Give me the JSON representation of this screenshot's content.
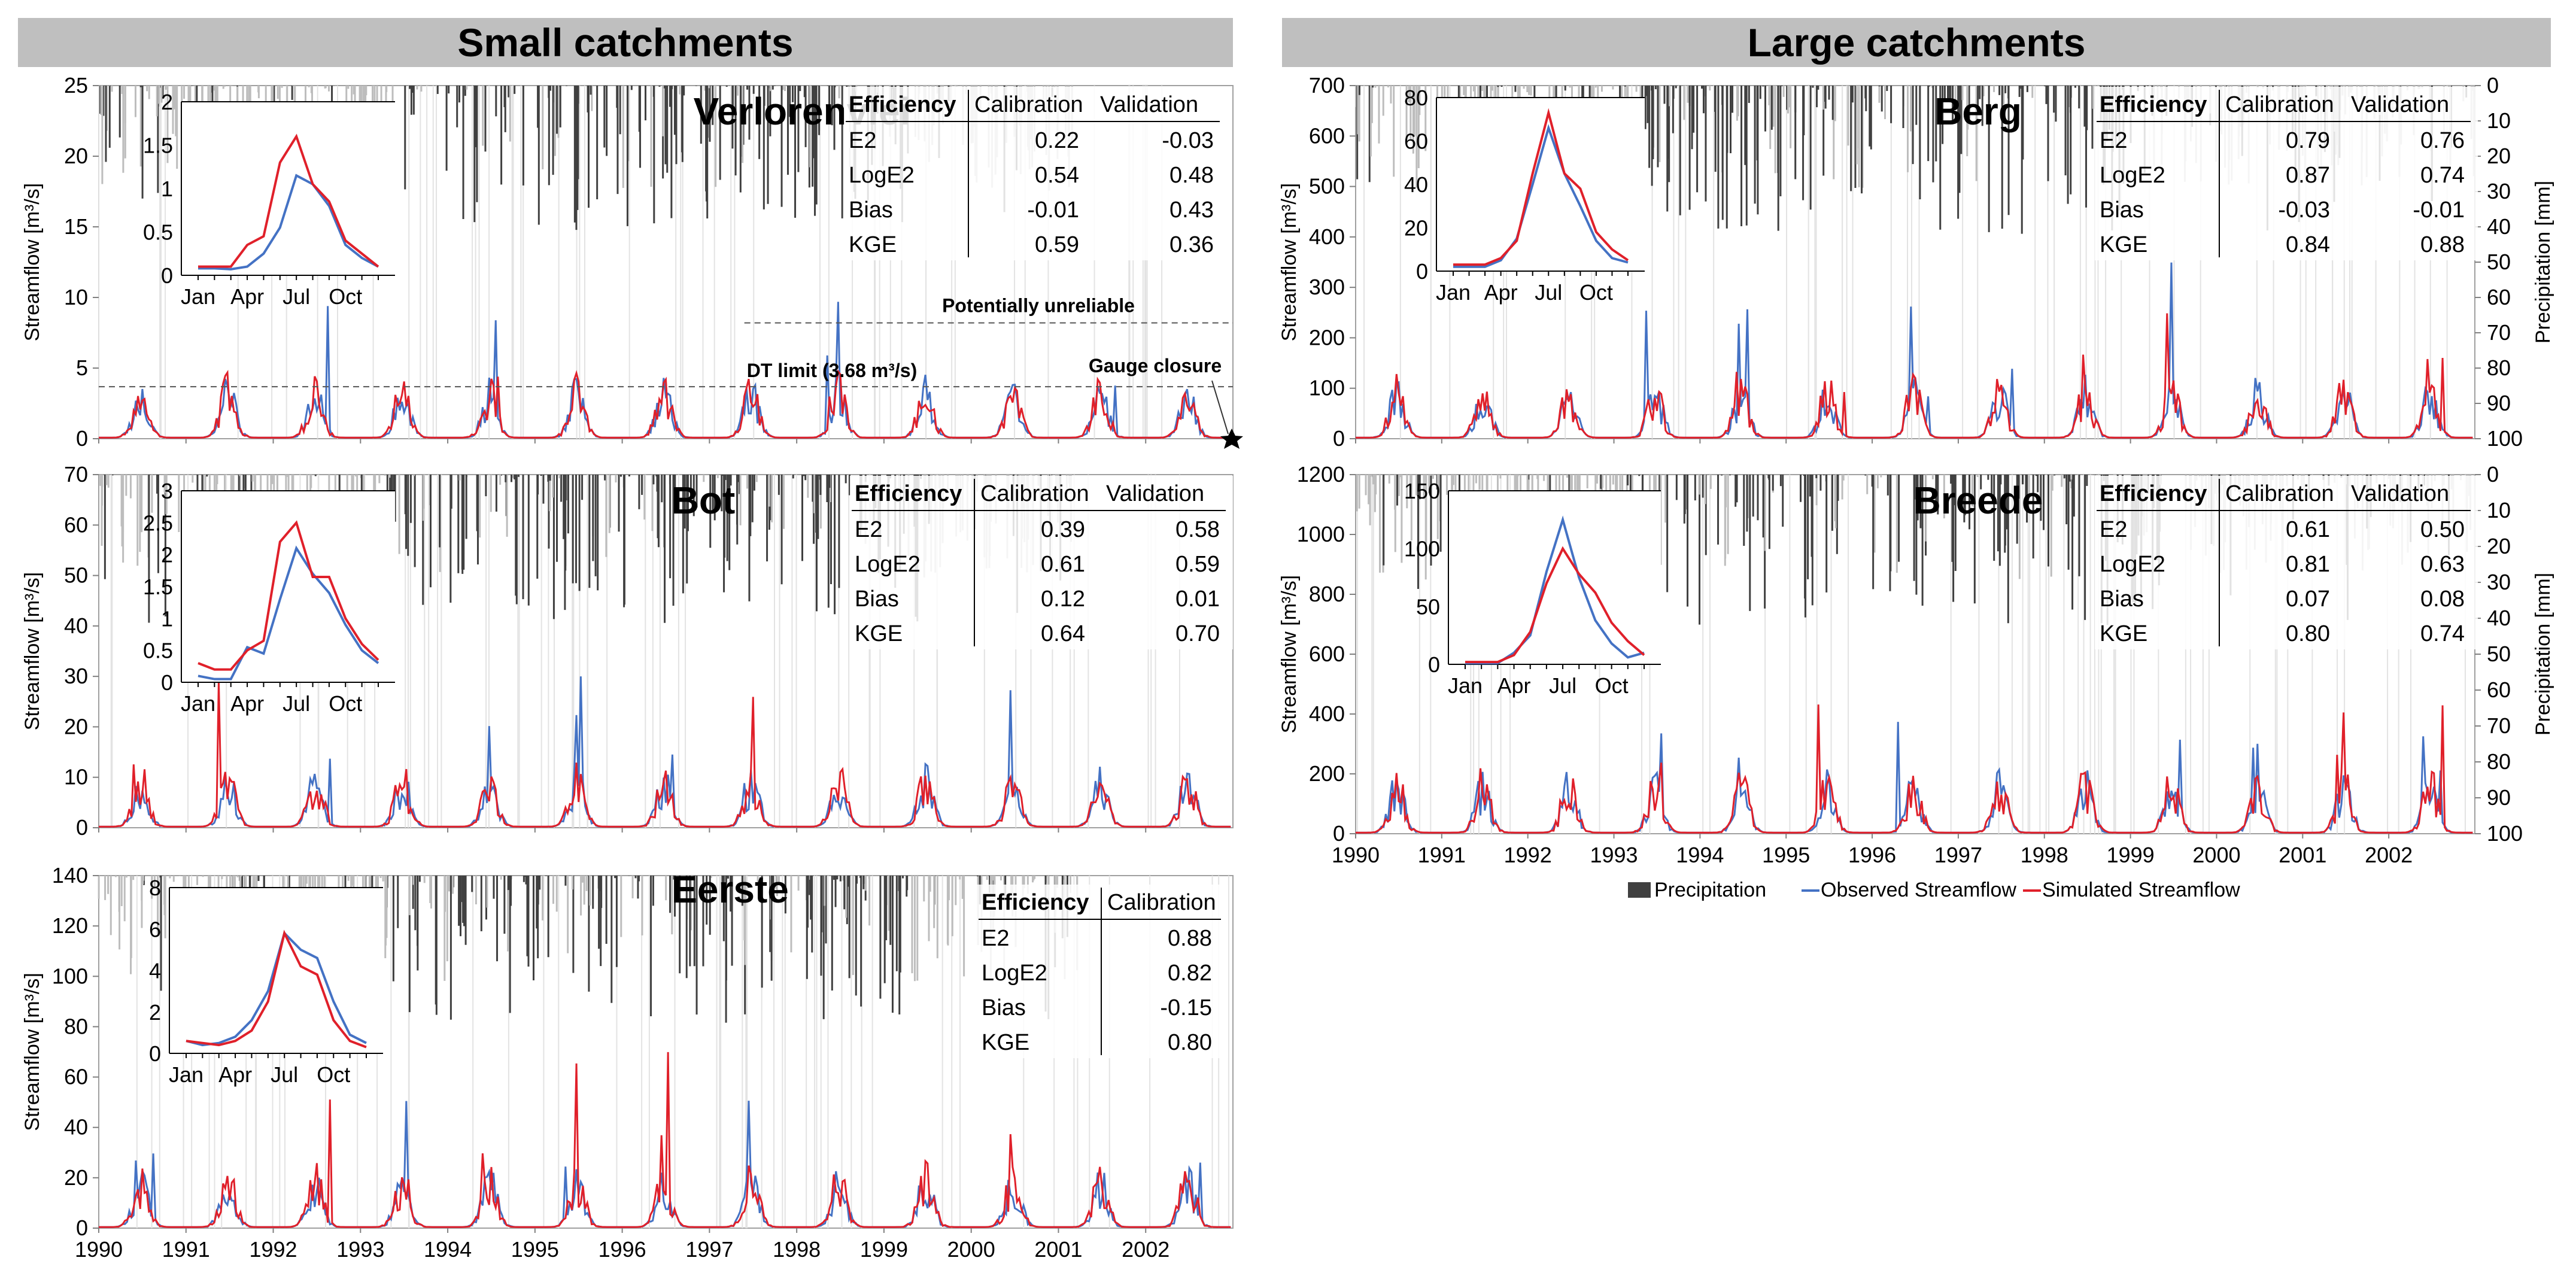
{
  "headers": {
    "small": "Small catchments",
    "large": "Large catchments"
  },
  "legend": {
    "precipitation": "Precipitation",
    "observed": "Observed Streamflow",
    "simulated": "Simulated Streamflow"
  },
  "colors": {
    "observed": "#4472c4",
    "simulated": "#e0202a",
    "precip_dark": "#404040",
    "precip_light": "#bdbdbd"
  },
  "chart_data": [
    {
      "type": "line",
      "title": "Verlorenvlei",
      "ylabel": "Streamflow [m³/s]",
      "ylim": [
        0,
        25
      ],
      "yticks": [
        0,
        5,
        10,
        15,
        20,
        25
      ],
      "xlabels": [
        "1990",
        "1991",
        "1992",
        "1993",
        "1994",
        "1995",
        "1996",
        "1997",
        "1998",
        "1999",
        "2000",
        "2001",
        "2002"
      ],
      "xlim": [
        1990,
        2003
      ],
      "y2label": "",
      "series": [
        {
          "name": "Observed Streamflow",
          "color": "#4472c4"
        },
        {
          "name": "Simulated Streamflow",
          "color": "#e0202a"
        }
      ],
      "annotations": {
        "dt_limit": "DT limit (3.68 m³/s)",
        "dt_value": 3.68,
        "unreliable": "Potentially unreliable",
        "unreliable_value": 8.2,
        "unreliable_from": 1997.4,
        "gauge": "Gauge closure"
      },
      "efficiency": {
        "headers": [
          "Efficiency",
          "Calibration",
          "Validation"
        ],
        "rows": [
          [
            "E2",
            "0.22",
            "-0.03"
          ],
          [
            "LogE2",
            "0.54",
            "0.48"
          ],
          [
            "Bias",
            "-0.01",
            "0.43"
          ],
          [
            "KGE",
            "0.59",
            "0.36"
          ]
        ]
      },
      "inset": {
        "ylim": [
          0,
          2
        ],
        "yticks": [
          "0",
          "0.5",
          "1",
          "1.5",
          "2"
        ],
        "xticklabels": [
          "Jan",
          "Apr",
          "Jul",
          "Oct"
        ],
        "observed": [
          0.08,
          0.08,
          0.07,
          0.1,
          0.25,
          0.55,
          1.15,
          1.05,
          0.8,
          0.35,
          0.2,
          0.1
        ],
        "simulated": [
          0.1,
          0.1,
          0.1,
          0.35,
          0.45,
          1.3,
          1.6,
          1.05,
          0.85,
          0.4,
          0.25,
          0.1
        ]
      }
    },
    {
      "type": "line",
      "title": "Bot",
      "ylabel": "Streamflow [m³/s]",
      "ylim": [
        0,
        70
      ],
      "yticks": [
        0,
        10,
        20,
        30,
        40,
        50,
        60,
        70
      ],
      "xlabels": [
        "1990",
        "1991",
        "1992",
        "1993",
        "1994",
        "1995",
        "1996",
        "1997",
        "1998",
        "1999",
        "2000",
        "2001",
        "2002"
      ],
      "xlim": [
        1990,
        2003
      ],
      "series": [
        {
          "name": "Observed Streamflow",
          "color": "#4472c4"
        },
        {
          "name": "Simulated Streamflow",
          "color": "#e0202a"
        }
      ],
      "efficiency": {
        "headers": [
          "Efficiency",
          "Calibration",
          "Validation"
        ],
        "rows": [
          [
            "E2",
            "0.39",
            "0.58"
          ],
          [
            "LogE2",
            "0.61",
            "0.59"
          ],
          [
            "Bias",
            "0.12",
            "0.01"
          ],
          [
            "KGE",
            "0.64",
            "0.70"
          ]
        ]
      },
      "inset": {
        "ylim": [
          0,
          3
        ],
        "yticks": [
          "0",
          "0.5",
          "1",
          "1.5",
          "2",
          "2.5",
          "3"
        ],
        "xticklabels": [
          "Jan",
          "Apr",
          "Jul",
          "Oct"
        ],
        "observed": [
          0.1,
          0.05,
          0.05,
          0.55,
          0.45,
          1.3,
          2.1,
          1.7,
          1.4,
          0.9,
          0.5,
          0.3
        ],
        "simulated": [
          0.3,
          0.2,
          0.2,
          0.5,
          0.65,
          2.2,
          2.5,
          1.65,
          1.65,
          1.0,
          0.6,
          0.35
        ]
      }
    },
    {
      "type": "line",
      "title": "Eerste",
      "ylabel": "Streamflow [m³/s]",
      "ylim": [
        0,
        140
      ],
      "yticks": [
        0,
        20,
        40,
        60,
        80,
        100,
        120,
        140
      ],
      "xlabels": [
        "1990",
        "1991",
        "1992",
        "1993",
        "1994",
        "1995",
        "1996",
        "1997",
        "1998",
        "1999",
        "2000",
        "2001",
        "2002"
      ],
      "xlim": [
        1990,
        2003
      ],
      "series": [
        {
          "name": "Observed Streamflow",
          "color": "#4472c4"
        },
        {
          "name": "Simulated Streamflow",
          "color": "#e0202a"
        }
      ],
      "efficiency": {
        "headers": [
          "Efficiency",
          "Calibration"
        ],
        "rows": [
          [
            "E2",
            "0.88"
          ],
          [
            "LogE2",
            "0.82"
          ],
          [
            "Bias",
            "-0.15"
          ],
          [
            "KGE",
            "0.80"
          ]
        ]
      },
      "inset": {
        "ylim": [
          0,
          8
        ],
        "yticks": [
          "0",
          "2",
          "4",
          "6",
          "8"
        ],
        "xticklabels": [
          "Jan",
          "Apr",
          "Jul",
          "Oct"
        ],
        "observed": [
          0.6,
          0.4,
          0.5,
          0.8,
          1.6,
          3.0,
          5.8,
          5.0,
          4.6,
          2.5,
          0.9,
          0.5
        ],
        "simulated": [
          0.6,
          0.5,
          0.4,
          0.6,
          1.1,
          2.5,
          5.8,
          4.2,
          3.8,
          1.6,
          0.6,
          0.3
        ]
      }
    },
    {
      "type": "line",
      "title": "Berg",
      "ylabel": "Streamflow [m³/s]",
      "ylim": [
        0,
        700
      ],
      "yticks": [
        0,
        100,
        200,
        300,
        400,
        500,
        600,
        700
      ],
      "y2label": "Precipitation [mm]",
      "y2ticks": [
        0,
        10,
        20,
        30,
        40,
        50,
        60,
        70,
        80,
        90,
        100
      ],
      "xlabels": [
        "1990",
        "1991",
        "1992",
        "1993",
        "1994",
        "1995",
        "1996",
        "1997",
        "1998",
        "1999",
        "2000",
        "2001",
        "2002"
      ],
      "xlim": [
        1990,
        2003
      ],
      "series": [
        {
          "name": "Observed Streamflow",
          "color": "#4472c4"
        },
        {
          "name": "Simulated Streamflow",
          "color": "#e0202a"
        }
      ],
      "efficiency": {
        "headers": [
          "Efficiency",
          "Calibration",
          "Validation"
        ],
        "rows": [
          [
            "E2",
            "0.79",
            "0.76"
          ],
          [
            "LogE2",
            "0.87",
            "0.74"
          ],
          [
            "Bias",
            "-0.03",
            "-0.01"
          ],
          [
            "KGE",
            "0.84",
            "0.88"
          ]
        ]
      },
      "inset": {
        "ylim": [
          0,
          80
        ],
        "yticks": [
          "0",
          "20",
          "40",
          "60",
          "80"
        ],
        "xticklabels": [
          "Jan",
          "Apr",
          "Jul",
          "Oct"
        ],
        "observed": [
          2,
          2,
          2,
          5,
          15,
          40,
          66,
          45,
          30,
          14,
          6,
          4
        ],
        "simulated": [
          3,
          3,
          3,
          6,
          14,
          45,
          73,
          45,
          38,
          18,
          10,
          5
        ]
      }
    },
    {
      "type": "line",
      "title": "Breede",
      "ylabel": "Streamflow [m³/s]",
      "ylim": [
        0,
        1200
      ],
      "yticks": [
        0,
        200,
        400,
        600,
        800,
        1000,
        1200
      ],
      "y2label": "Precipitation [mm]",
      "y2ticks": [
        0,
        10,
        20,
        30,
        40,
        50,
        60,
        70,
        80,
        90,
        100
      ],
      "xlabels": [
        "1990",
        "1991",
        "1992",
        "1993",
        "1994",
        "1995",
        "1996",
        "1997",
        "1998",
        "1999",
        "2000",
        "2001",
        "2002"
      ],
      "xlim": [
        1990,
        2003
      ],
      "series": [
        {
          "name": "Observed Streamflow",
          "color": "#4472c4"
        },
        {
          "name": "Simulated Streamflow",
          "color": "#e0202a"
        }
      ],
      "efficiency": {
        "headers": [
          "Efficiency",
          "Calibration",
          "Validation"
        ],
        "rows": [
          [
            "E2",
            "0.61",
            "0.50"
          ],
          [
            "LogE2",
            "0.81",
            "0.63"
          ],
          [
            "Bias",
            "0.07",
            "0.08"
          ],
          [
            "KGE",
            "0.80",
            "0.74"
          ]
        ]
      },
      "inset": {
        "ylim": [
          0,
          150
        ],
        "yticks": [
          "0",
          "50",
          "100",
          "150"
        ],
        "xticklabels": [
          "Jan",
          "Apr",
          "Jul",
          "Oct"
        ],
        "observed": [
          1,
          1,
          1,
          10,
          25,
          80,
          125,
          75,
          38,
          18,
          6,
          10
        ],
        "simulated": [
          2,
          2,
          2,
          8,
          28,
          70,
          100,
          78,
          62,
          36,
          20,
          8
        ]
      }
    }
  ]
}
